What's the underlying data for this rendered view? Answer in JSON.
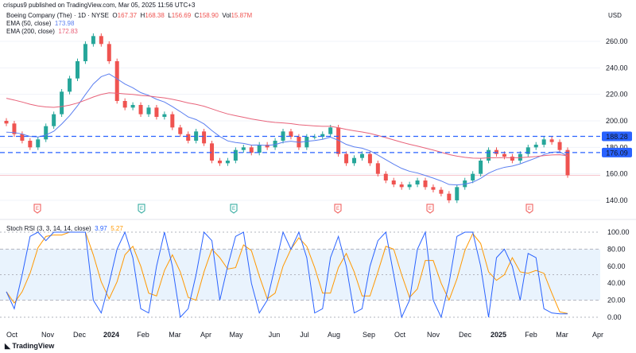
{
  "publisher": "crispus9 published on TradingView.com, Mar 05, 2025 11:56 UTC+3",
  "symbol": {
    "name": "Boeing Company (The) · 1D · NYSE",
    "o_label": "O",
    "o": "167.37",
    "h_label": "H",
    "h": "168.38",
    "l_label": "L",
    "l": "156.69",
    "c_label": "C",
    "c": "158.90",
    "vol_label": "Vol",
    "vol": "15.87M"
  },
  "ema50": {
    "label": "EMA (50, close)",
    "value": "173.98",
    "color": "#5b7ff0"
  },
  "ema200": {
    "label": "EMA (200, close)",
    "value": "172.83",
    "color": "#e8637a"
  },
  "currency": "USD",
  "stoch": {
    "label": "Stoch RSI (3, 3, 14, 14, close)",
    "k": "3.97",
    "d": "5.27",
    "k_color": "#2962ff",
    "d_color": "#ff9800"
  },
  "logo": "TradingView",
  "colors": {
    "up": "#26a69a",
    "down": "#ef5350",
    "level": "#2962ff"
  },
  "chart_data": [
    {
      "type": "candlestick",
      "title": "Boeing Company (The) · 1D · NYSE",
      "ylim": [
        130,
        270
      ],
      "yticks": [
        "260.00",
        "240.00",
        "220.00",
        "200.00",
        "180.00",
        "160.00",
        "140.00"
      ],
      "xticks": [
        "Oct",
        "Nov",
        "Dec",
        "2024",
        "Feb",
        "Mar",
        "Apr",
        "May",
        "Jun",
        "Jul",
        "Aug",
        "Sep",
        "Oct",
        "Nov",
        "Dec",
        "2025",
        "Feb",
        "Mar",
        "Apr"
      ],
      "weekly_closes": [
        198,
        190,
        185,
        180,
        186,
        196,
        205,
        222,
        232,
        245,
        258,
        264,
        258,
        245,
        215,
        210,
        212,
        205,
        210,
        203,
        205,
        195,
        190,
        185,
        192,
        183,
        170,
        168,
        170,
        178,
        180,
        176,
        182,
        180,
        185,
        192,
        188,
        180,
        188,
        188,
        190,
        195,
        175,
        168,
        172,
        175,
        168,
        160,
        155,
        152,
        150,
        152,
        155,
        150,
        148,
        145,
        140,
        150,
        155,
        160,
        170,
        178,
        175,
        173,
        170,
        175,
        180,
        182,
        186,
        184,
        178,
        159
      ],
      "levels": [
        {
          "value": 188.28,
          "label": "188.28"
        },
        {
          "value": 176.09,
          "label": "176.09"
        }
      ],
      "last_price": 158.9,
      "earnings": [
        {
          "label": "E",
          "type": "miss"
        },
        {
          "label": "E",
          "type": "beat"
        },
        {
          "label": "E",
          "type": "beat"
        },
        {
          "label": "E",
          "type": "miss"
        },
        {
          "label": "E",
          "type": "miss"
        },
        {
          "label": "E",
          "type": "miss"
        }
      ]
    },
    {
      "type": "line",
      "title": "Stoch RSI (3, 3, 14, 14, close)",
      "ylim": [
        0,
        100
      ],
      "yticks": [
        "100.00",
        "80.00",
        "60.00",
        "40.00",
        "20.00",
        "0.00"
      ],
      "band": [
        20,
        80
      ],
      "k": [
        30,
        10,
        50,
        95,
        100,
        90,
        100,
        100,
        100,
        100,
        100,
        20,
        5,
        40,
        80,
        100,
        70,
        10,
        5,
        60,
        100,
        60,
        0,
        10,
        50,
        100,
        90,
        20,
        60,
        95,
        100,
        40,
        5,
        20,
        60,
        100,
        80,
        100,
        70,
        5,
        10,
        70,
        95,
        60,
        5,
        10,
        60,
        90,
        100,
        50,
        0,
        20,
        80,
        100,
        20,
        0,
        40,
        95,
        100,
        100,
        60,
        0,
        70,
        80,
        60,
        20,
        75,
        70,
        10,
        5,
        4,
        4
      ]
    }
  ]
}
